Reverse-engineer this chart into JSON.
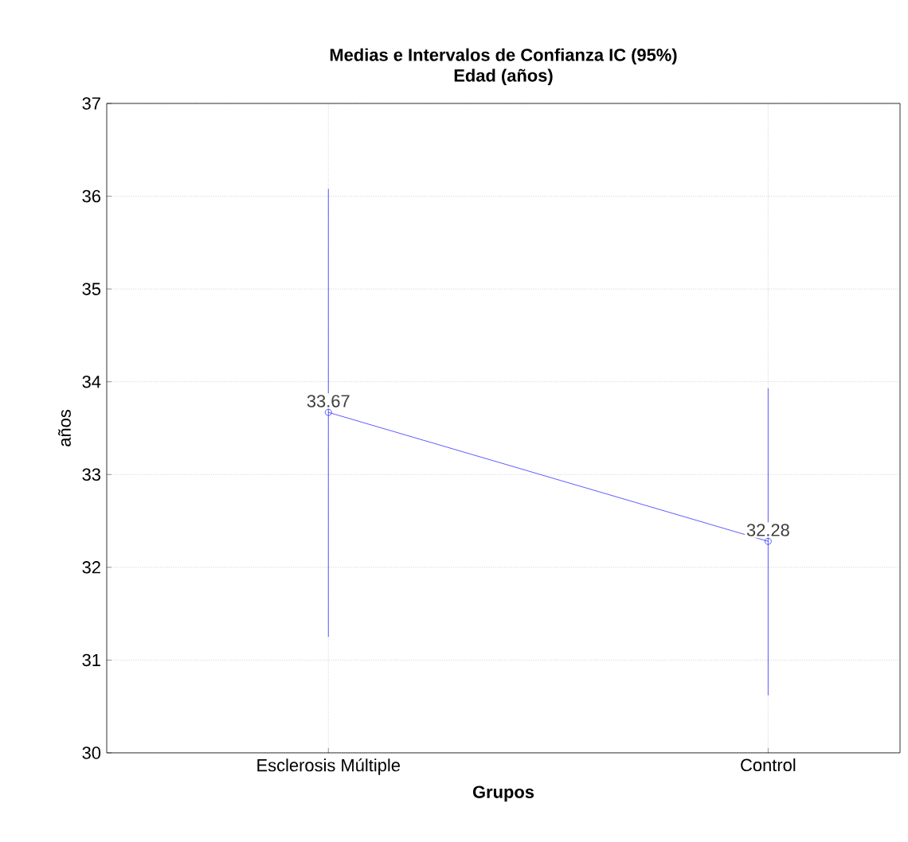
{
  "chart_data": {
    "type": "line",
    "title": "Medias e Intervalos de Confianza IC (95%)",
    "subtitle": "Edad (años)",
    "xlabel": "Grupos",
    "ylabel": "años",
    "categories": [
      "Esclerosis Múltiple",
      "Control"
    ],
    "series": [
      {
        "color": "#3333ff",
        "values": [
          33.67,
          32.28
        ],
        "errors": [
          [
            31.25,
            36.08
          ],
          [
            30.62,
            33.93
          ]
        ]
      }
    ],
    "ylim": [
      30,
      37
    ],
    "yticks": [
      30,
      31,
      32,
      33,
      34,
      35,
      36,
      37
    ],
    "grid": true,
    "marker": "circle",
    "line_style": "solid",
    "data_labels": true
  }
}
